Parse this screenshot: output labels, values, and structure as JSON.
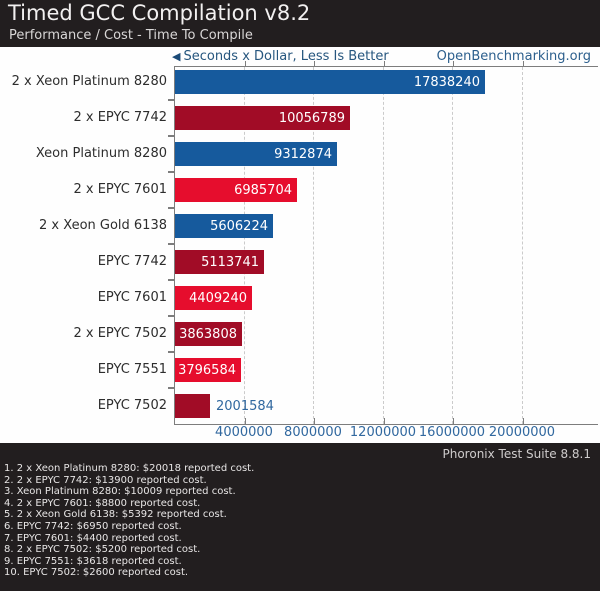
{
  "header": {
    "title": "Timed GCC Compilation v8.2",
    "subtitle": "Performance / Cost - Time To Compile"
  },
  "chart": {
    "axis_hint": "Seconds x Dollar, Less Is Better",
    "watermark": "OpenBenchmarking.org"
  },
  "chart_data": {
    "type": "bar",
    "orientation": "horizontal",
    "title": "Timed GCC Compilation v8.2",
    "subtitle": "Performance / Cost - Time To Compile",
    "xlabel": "Seconds x Dollar, Less Is Better",
    "legend": "none",
    "grid": "dashed-vertical",
    "categories": [
      "2 x Xeon Platinum 8280",
      "2 x EPYC 7742",
      "Xeon Platinum 8280",
      "2 x EPYC 7601",
      "2 x Xeon Gold 6138",
      "EPYC 7742",
      "EPYC 7601",
      "2 x EPYC 7502",
      "EPYC 7551",
      "EPYC 7502"
    ],
    "values": [
      17838240,
      10056789,
      9312874,
      6985704,
      5606224,
      5113741,
      4409240,
      3863808,
      3796584,
      2001584
    ],
    "bar_colors": [
      "#165a9d",
      "#a10c26",
      "#165a9d",
      "#e60d2d",
      "#165a9d",
      "#a10c26",
      "#e60d2d",
      "#a10c26",
      "#e60d2d",
      "#a10c26"
    ],
    "palette": {
      "xeon_blue": "#165a9d",
      "epyc_dark_red": "#a10c26",
      "epyc_bright_red": "#e60d2d",
      "axis_text_blue": "#31689f"
    },
    "x_ticks": [
      4000000,
      8000000,
      12000000,
      16000000,
      20000000
    ],
    "xlim": [
      0,
      24300000
    ]
  },
  "footer": {
    "suite": "Phoronix Test Suite 8.8.1",
    "notes": [
      "1. 2 x Xeon Platinum 8280: $20018 reported cost.",
      "2. 2 x EPYC 7742: $13900 reported cost.",
      "3. Xeon Platinum 8280: $10009 reported cost.",
      "4. 2 x EPYC 7601: $8800 reported cost.",
      "5. 2 x Xeon Gold 6138: $5392 reported cost.",
      "6. EPYC 7742: $6950 reported cost.",
      "7. EPYC 7601: $4400 reported cost.",
      "8. 2 x EPYC 7502: $5200 reported cost.",
      "9. EPYC 7551: $3618 reported cost.",
      "10. EPYC 7502: $2600 reported cost."
    ]
  }
}
